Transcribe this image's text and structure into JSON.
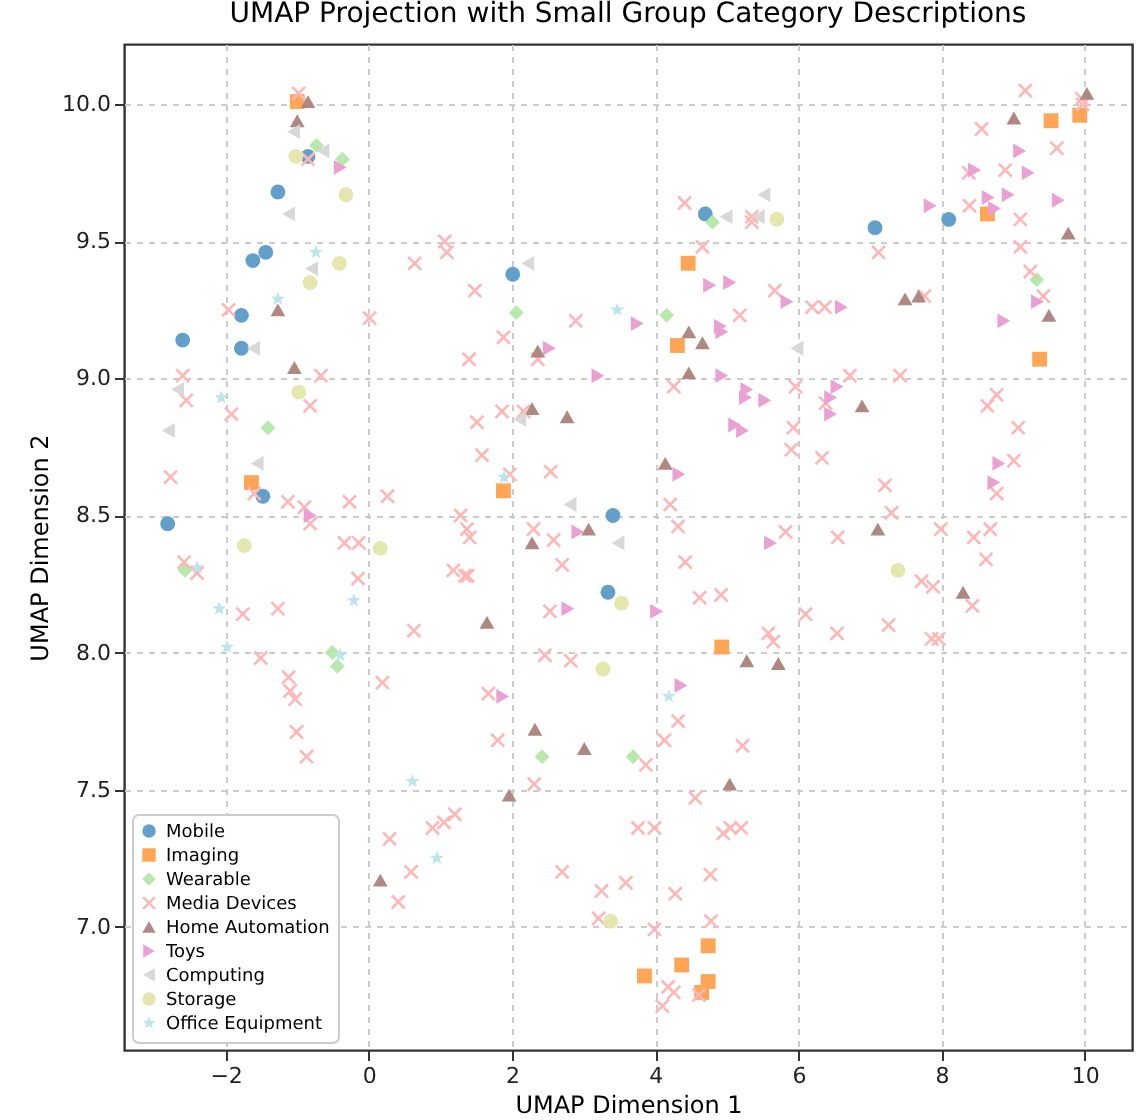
{
  "chart_data": {
    "type": "scatter",
    "title": "UMAP Projection with Small Group Category Descriptions",
    "xlabel": "UMAP Dimension 1",
    "ylabel": "UMAP Dimension 2",
    "xlim": [
      -3.42,
      10.66
    ],
    "ylim": [
      6.55,
      10.22
    ],
    "xticks": [
      -2,
      0,
      2,
      4,
      6,
      8,
      10
    ],
    "yticks": [
      {
        "value": 7,
        "label": "7.0"
      },
      {
        "value": 7.5,
        "label": "7.5"
      },
      {
        "value": 8,
        "label": "8.0"
      },
      {
        "value": 8.5,
        "label": "8.5"
      },
      {
        "value": 9,
        "label": "9.0"
      },
      {
        "value": 9.5,
        "label": "9.5"
      },
      {
        "value": 10,
        "label": "10.0"
      }
    ],
    "grid": true,
    "legend": "bottom left",
    "series": [
      {
        "name": "Mobile",
        "color": "#62a0cb",
        "marker": "circle",
        "x": [
          -0.85,
          -1.27,
          -1.44,
          -1.62,
          -1.78,
          -2.6,
          -1.78,
          -1.48,
          -2.81,
          4.7,
          2.01,
          3.41,
          3.34,
          7.07,
          8.1
        ],
        "values": [
          9.81,
          9.68,
          9.46,
          9.43,
          9.23,
          9.14,
          9.11,
          8.57,
          8.47,
          9.6,
          9.38,
          8.5,
          8.22,
          9.55,
          9.58
        ]
      },
      {
        "name": "Imaging",
        "color": "#ffa556",
        "marker": "square",
        "x": [
          -1.0,
          -1.64,
          4.46,
          4.31,
          1.88,
          4.93,
          4.74,
          4.37,
          3.85,
          4.74,
          4.65,
          9.93,
          9.53,
          8.64,
          9.37
        ],
        "values": [
          10.01,
          8.62,
          9.42,
          9.12,
          8.59,
          8.02,
          6.93,
          6.86,
          6.82,
          6.8,
          6.76,
          9.96,
          9.94,
          9.6,
          9.07
        ]
      },
      {
        "name": "Wearable",
        "color": "#b7e9ad",
        "marker": "diamond",
        "x": [
          -0.73,
          -0.37,
          -1.41,
          -2.57,
          -0.51,
          -0.44,
          4.8,
          2.06,
          4.16,
          2.42,
          3.69,
          9.33
        ],
        "values": [
          9.85,
          9.8,
          8.82,
          8.3,
          8.0,
          7.95,
          9.57,
          9.24,
          9.23,
          7.62,
          7.62,
          9.36
        ]
      },
      {
        "name": "Media Devices",
        "color": "#ffb7b6",
        "marker": "cross",
        "x": [
          -0.98,
          -0.85,
          1.06,
          1.09,
          0.64,
          -1.96,
          0.01,
          1.4,
          -0.67,
          -2.6,
          -2.55,
          -0.82,
          -1.92,
          -2.77,
          -1.6,
          -1.13,
          -0.9,
          -0.27,
          0.26,
          -0.82,
          1.28,
          -0.34,
          -0.14,
          -2.58,
          -2.4,
          -0.15,
          1.18,
          1.34,
          -1.76,
          -1.27,
          0.63,
          -1.51,
          -1.12,
          -1.1,
          -1.03,
          -1.01,
          -0.87,
          0.19,
          0.29,
          0.59,
          0.41,
          0.89,
          1.05,
          1.2,
          4.41,
          5.35,
          5.35,
          4.66,
          1.48,
          5.67,
          1.88,
          2.89,
          5.18,
          2.36,
          4.26,
          5.96,
          2.16,
          1.86,
          1.51,
          5.93,
          5.9,
          1.58,
          2.54,
          1.97,
          4.21,
          4.32,
          5.82,
          2.3,
          2.58,
          1.37,
          1.41,
          1.38,
          2.7,
          4.42,
          2.53,
          4.62,
          4.92,
          6.1,
          5.58,
          5.65,
          2.46,
          2.82,
          1.67,
          4.32,
          1.8,
          4.13,
          5.22,
          3.87,
          2.31,
          4.56,
          3.76,
          3.99,
          4.95,
          5.05,
          5.2,
          2.7,
          3.25,
          3.59,
          4.28,
          4.77,
          3.21,
          4.78,
          3.99,
          4.18,
          4.26,
          4.61,
          4.1,
          9.17,
          9.96,
          9.97,
          8.56,
          9.61,
          8.38,
          8.89,
          8.39,
          9.1,
          7.12,
          9.1,
          9.24,
          9.42,
          7.76,
          6.19,
          6.37,
          6.72,
          7.42,
          6.38,
          8.77,
          8.64,
          9.07,
          6.33,
          9.01,
          7.21,
          8.77,
          7.3,
          7.99,
          8.45,
          8.68,
          6.55,
          7.72,
          7.88,
          8.43,
          8.62,
          6.54,
          7.26,
          7.86,
          7.96
        ],
        "values": [
          10.04,
          9.8,
          9.5,
          9.46,
          9.42,
          9.25,
          9.22,
          9.07,
          9.01,
          9.01,
          8.92,
          8.9,
          8.87,
          8.64,
          8.58,
          8.55,
          8.53,
          8.55,
          8.57,
          8.47,
          8.5,
          8.4,
          8.4,
          8.33,
          8.29,
          8.27,
          8.3,
          8.28,
          8.14,
          8.16,
          8.08,
          7.98,
          7.91,
          7.86,
          7.83,
          7.71,
          7.62,
          7.89,
          7.32,
          7.2,
          7.09,
          7.36,
          7.38,
          7.41,
          9.64,
          9.59,
          9.57,
          9.48,
          9.32,
          9.32,
          9.15,
          9.21,
          9.23,
          9.07,
          8.97,
          8.97,
          8.88,
          8.88,
          8.84,
          8.82,
          8.74,
          8.72,
          8.66,
          8.65,
          8.54,
          8.46,
          8.44,
          8.45,
          8.41,
          8.45,
          8.42,
          8.28,
          8.32,
          8.33,
          8.15,
          8.2,
          8.21,
          8.14,
          8.07,
          8.04,
          7.99,
          7.97,
          7.85,
          7.75,
          7.68,
          7.68,
          7.66,
          7.59,
          7.52,
          7.47,
          7.36,
          7.36,
          7.34,
          7.36,
          7.36,
          7.2,
          7.13,
          7.16,
          7.12,
          7.19,
          7.03,
          7.02,
          6.99,
          6.78,
          6.76,
          6.75,
          6.71,
          10.05,
          10.02,
          10.0,
          9.91,
          9.84,
          9.75,
          9.76,
          9.63,
          9.58,
          9.46,
          9.48,
          9.39,
          9.3,
          9.3,
          9.26,
          9.26,
          9.01,
          9.01,
          8.91,
          8.94,
          8.9,
          8.82,
          8.71,
          8.7,
          8.61,
          8.58,
          8.51,
          8.45,
          8.42,
          8.45,
          8.42,
          8.26,
          8.24,
          8.17,
          8.34,
          8.07,
          8.1,
          8.05,
          8.05
        ]
      },
      {
        "name": "Home Automation",
        "color": "#af8981",
        "marker": "triangle-up",
        "x": [
          -0.85,
          -1.0,
          -1.27,
          -1.04,
          0.16,
          4.47,
          4.66,
          2.36,
          4.47,
          2.28,
          2.77,
          4.14,
          3.07,
          2.28,
          1.65,
          5.28,
          5.72,
          2.32,
          3.01,
          1.96,
          5.04,
          10.03,
          9.01,
          9.77,
          9.5,
          7.49,
          7.68,
          6.89,
          7.11,
          8.3
        ],
        "values": [
          10.01,
          9.94,
          9.25,
          9.04,
          7.17,
          9.17,
          9.13,
          9.1,
          9.02,
          8.89,
          8.86,
          8.69,
          8.45,
          8.4,
          8.11,
          7.97,
          7.96,
          7.72,
          7.65,
          7.48,
          7.52,
          10.04,
          9.95,
          9.53,
          9.23,
          9.29,
          9.3,
          8.9,
          8.45,
          8.22
        ]
      },
      {
        "name": "Toys",
        "color": "#eba0d4",
        "marker": "triangle-right",
        "x": [
          -0.4,
          -0.82,
          4.76,
          5.04,
          5.84,
          3.75,
          4.91,
          4.93,
          2.52,
          3.2,
          4.93,
          5.28,
          5.26,
          5.53,
          5.11,
          5.22,
          4.33,
          5.61,
          2.92,
          2.78,
          4.02,
          1.87,
          4.36,
          9.09,
          8.46,
          9.21,
          7.84,
          8.65,
          8.93,
          8.74,
          9.63,
          9.34,
          6.6,
          8.87,
          6.54,
          6.45,
          6.45,
          8.8,
          8.73
        ],
        "values": [
          9.77,
          8.5,
          9.34,
          9.35,
          9.28,
          9.2,
          9.19,
          9.17,
          9.11,
          9.01,
          9.01,
          8.96,
          8.93,
          8.92,
          8.83,
          8.81,
          8.65,
          8.4,
          8.44,
          8.16,
          8.15,
          7.84,
          7.88,
          9.83,
          9.76,
          9.75,
          9.63,
          9.66,
          9.67,
          9.62,
          9.65,
          9.28,
          9.26,
          9.21,
          8.97,
          8.93,
          8.87,
          8.69,
          8.62
        ]
      },
      {
        "name": "Computing",
        "color": "#d8d8d8",
        "marker": "triangle-left",
        "x": [
          -1.05,
          -0.64,
          -1.12,
          -0.8,
          -1.61,
          -2.67,
          -2.8,
          -1.56,
          4.99,
          5.52,
          5.44,
          2.22,
          5.98,
          2.11,
          2.81,
          3.48
        ],
        "values": [
          9.9,
          9.83,
          9.6,
          9.4,
          9.11,
          8.96,
          8.81,
          8.69,
          9.59,
          9.67,
          9.59,
          9.42,
          9.11,
          8.85,
          8.54,
          8.4
        ]
      },
      {
        "name": "Storage",
        "color": "#e6e6af",
        "marker": "circle",
        "x": [
          -1.02,
          -0.32,
          -0.41,
          -0.82,
          -0.98,
          -1.74,
          0.16,
          5.7,
          3.53,
          3.27,
          3.38,
          7.39
        ],
        "values": [
          9.81,
          9.67,
          9.42,
          9.35,
          8.95,
          8.39,
          8.38,
          9.58,
          8.18,
          7.94,
          7.02,
          8.3
        ]
      },
      {
        "name": "Office Equipment",
        "color": "#bbe5ed",
        "marker": "star",
        "x": [
          -0.74,
          -1.27,
          -2.06,
          -2.4,
          -2.09,
          -0.21,
          -1.98,
          -0.4,
          0.61,
          0.95,
          3.47,
          1.89,
          4.19
        ],
        "values": [
          9.46,
          9.29,
          8.93,
          8.31,
          8.16,
          8.19,
          8.02,
          7.99,
          7.53,
          7.25,
          9.25,
          8.64,
          7.84
        ]
      }
    ]
  }
}
